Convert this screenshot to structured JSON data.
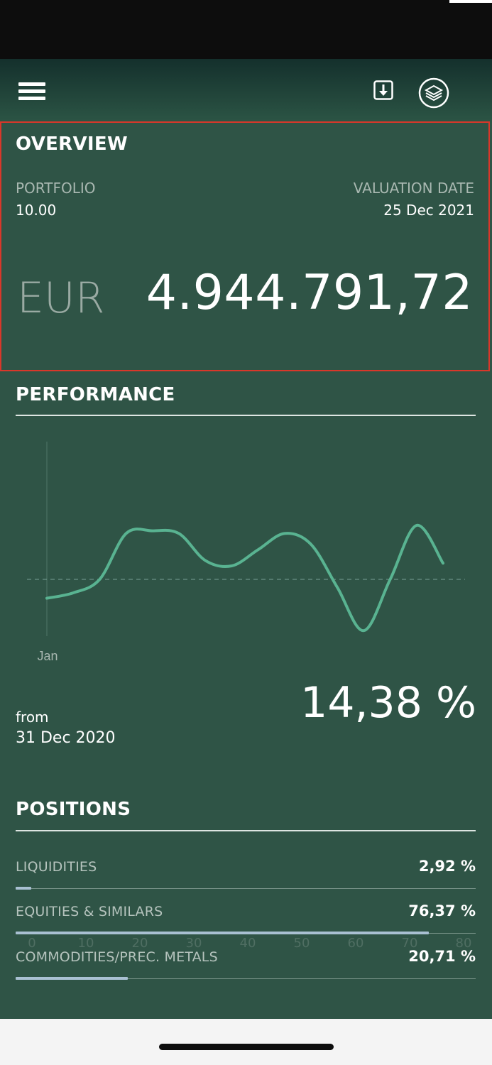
{
  "header": {
    "menu_icon": "hamburger-menu-icon",
    "download_icon": "download-icon",
    "layers_icon": "layers-icon"
  },
  "overview": {
    "title": "OVERVIEW",
    "portfolio_label": "PORTFOLIO",
    "portfolio_value": "10.00",
    "valuation_label": "VALUATION DATE",
    "valuation_value": "25 Dec 2021",
    "currency": "EUR",
    "amount": "4.944.791,72"
  },
  "performance": {
    "title": "PERFORMANCE",
    "axis_label": "Jan",
    "from_label": "from",
    "from_date": "31 Dec 2020",
    "value": "14,38 %"
  },
  "chart_data": {
    "type": "line",
    "x_labels": [
      "Jan"
    ],
    "series": [
      {
        "values": [
          -3.5,
          -2.5,
          0.0,
          8.5,
          9.0,
          8.5,
          3.5,
          2.5,
          5.5,
          8.5,
          6.5,
          -1.5,
          -9.5,
          0.0,
          10.0,
          3.0
        ]
      }
    ],
    "baseline": 0,
    "line_color": "#59b391",
    "baseline_color": "#7aa196"
  },
  "positions": {
    "title": "POSITIONS",
    "items": [
      {
        "name": "LIQUIDITIES",
        "value": "2,92 %",
        "percent": 2.92
      },
      {
        "name": "EQUITIES & SIMILARS",
        "value": "76,37 %",
        "percent": 76.37
      },
      {
        "name": "COMMODITIES/PREC. METALS",
        "value": "20,71 %",
        "percent": 20.71
      }
    ],
    "axis_ticks": [
      "0",
      "10",
      "20",
      "30",
      "40",
      "50",
      "60",
      "70",
      "80"
    ],
    "axis_max": 85,
    "bar_color": "#a9c0d2"
  },
  "colors": {
    "background": "#2f5446",
    "accent": "#59b391",
    "highlight_border": "#d9372a"
  }
}
